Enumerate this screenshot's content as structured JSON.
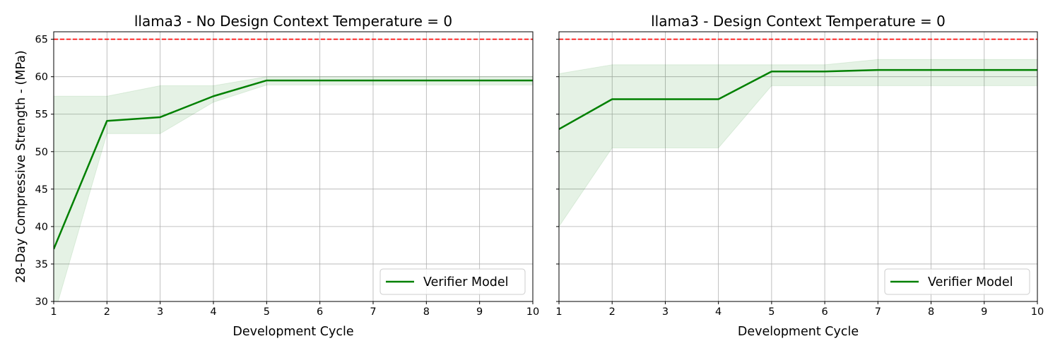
{
  "figure": {
    "ylabel": "28-Day Compressive Strength - (MPa)"
  },
  "chart_data": [
    {
      "type": "line",
      "title": "llama3 -  No Design Context Temperature = 0",
      "xlabel": "Development Cycle",
      "ylabel": "28-Day Compressive Strength - (MPa)",
      "xlim": [
        1,
        10
      ],
      "ylim": [
        30,
        66
      ],
      "xticks": [
        1,
        2,
        3,
        4,
        5,
        6,
        7,
        8,
        9,
        10
      ],
      "yticks": [
        30,
        35,
        40,
        45,
        50,
        55,
        60,
        65
      ],
      "grid": true,
      "legend_position": "lower-right",
      "reference_line": {
        "y": 65,
        "style": "dashed",
        "color": "#ff0000"
      },
      "series": [
        {
          "name": "Verifier Model",
          "color": "#008000",
          "x": [
            1,
            2,
            3,
            4,
            5,
            6,
            7,
            8,
            9,
            10
          ],
          "y": [
            37.0,
            54.1,
            54.6,
            57.4,
            59.5,
            59.5,
            59.5,
            59.5,
            59.5,
            59.5
          ],
          "band_upper": [
            57.4,
            57.4,
            58.8,
            58.8,
            60.0,
            60.0,
            60.0,
            60.0,
            60.0,
            60.0
          ],
          "band_lower": [
            28.0,
            52.4,
            52.4,
            56.6,
            58.9,
            58.9,
            58.9,
            58.9,
            58.9,
            58.9
          ]
        }
      ]
    },
    {
      "type": "line",
      "title": "llama3 -  Design Context Temperature = 0",
      "xlabel": "Development Cycle",
      "ylabel": "",
      "xlim": [
        1,
        10
      ],
      "ylim": [
        30,
        66
      ],
      "xticks": [
        1,
        2,
        3,
        4,
        5,
        6,
        7,
        8,
        9,
        10
      ],
      "yticks": [
        30,
        35,
        40,
        45,
        50,
        55,
        60,
        65
      ],
      "grid": true,
      "legend_position": "lower-right",
      "reference_line": {
        "y": 65,
        "style": "dashed",
        "color": "#ff0000"
      },
      "series": [
        {
          "name": "Verifier Model",
          "color": "#008000",
          "x": [
            1,
            2,
            3,
            4,
            5,
            6,
            7,
            8,
            9,
            10
          ],
          "y": [
            53.0,
            57.0,
            57.0,
            57.0,
            60.7,
            60.7,
            60.9,
            60.9,
            60.9,
            60.9
          ],
          "band_upper": [
            60.4,
            61.6,
            61.6,
            61.6,
            61.6,
            61.6,
            62.3,
            62.3,
            62.3,
            62.3
          ],
          "band_lower": [
            40.0,
            50.5,
            50.5,
            50.5,
            58.8,
            58.8,
            58.8,
            58.8,
            58.8,
            58.8
          ]
        }
      ]
    }
  ]
}
